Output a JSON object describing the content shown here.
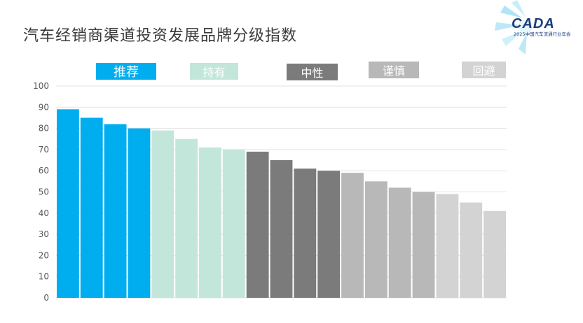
{
  "title": "汽车经销商渠道投资发展品牌分级指数",
  "logo": {
    "text": "CADA",
    "subtitle": "2025中国汽车流通行业年会"
  },
  "colors": {
    "recommend": "#00adef",
    "hold": "#c3e6da",
    "neutral": "#7b7b7b",
    "caution": "#b8b8b8",
    "avoid": "#d3d3d3",
    "grid": "#e3e3e3",
    "axis_text": "#595959"
  },
  "chart_data": {
    "type": "bar",
    "title": "",
    "xlabel": "",
    "ylabel": "",
    "ylim": [
      0,
      100
    ],
    "yticks": [
      0,
      10,
      20,
      30,
      40,
      50,
      60,
      70,
      80,
      90,
      100
    ],
    "grid": true,
    "legend_position": "top",
    "series": [
      {
        "name": "推荐",
        "color": "#00adef",
        "values": [
          89,
          85,
          82,
          80
        ]
      },
      {
        "name": "持有",
        "color": "#c3e6da",
        "values": [
          79,
          75,
          71,
          70
        ]
      },
      {
        "name": "中性",
        "color": "#7b7b7b",
        "values": [
          69,
          65,
          61,
          60
        ]
      },
      {
        "name": "谨慎",
        "color": "#b8b8b8",
        "values": [
          59,
          55,
          52,
          50
        ]
      },
      {
        "name": "回避",
        "color": "#d3d3d3",
        "values": [
          49,
          45,
          41
        ]
      }
    ]
  }
}
